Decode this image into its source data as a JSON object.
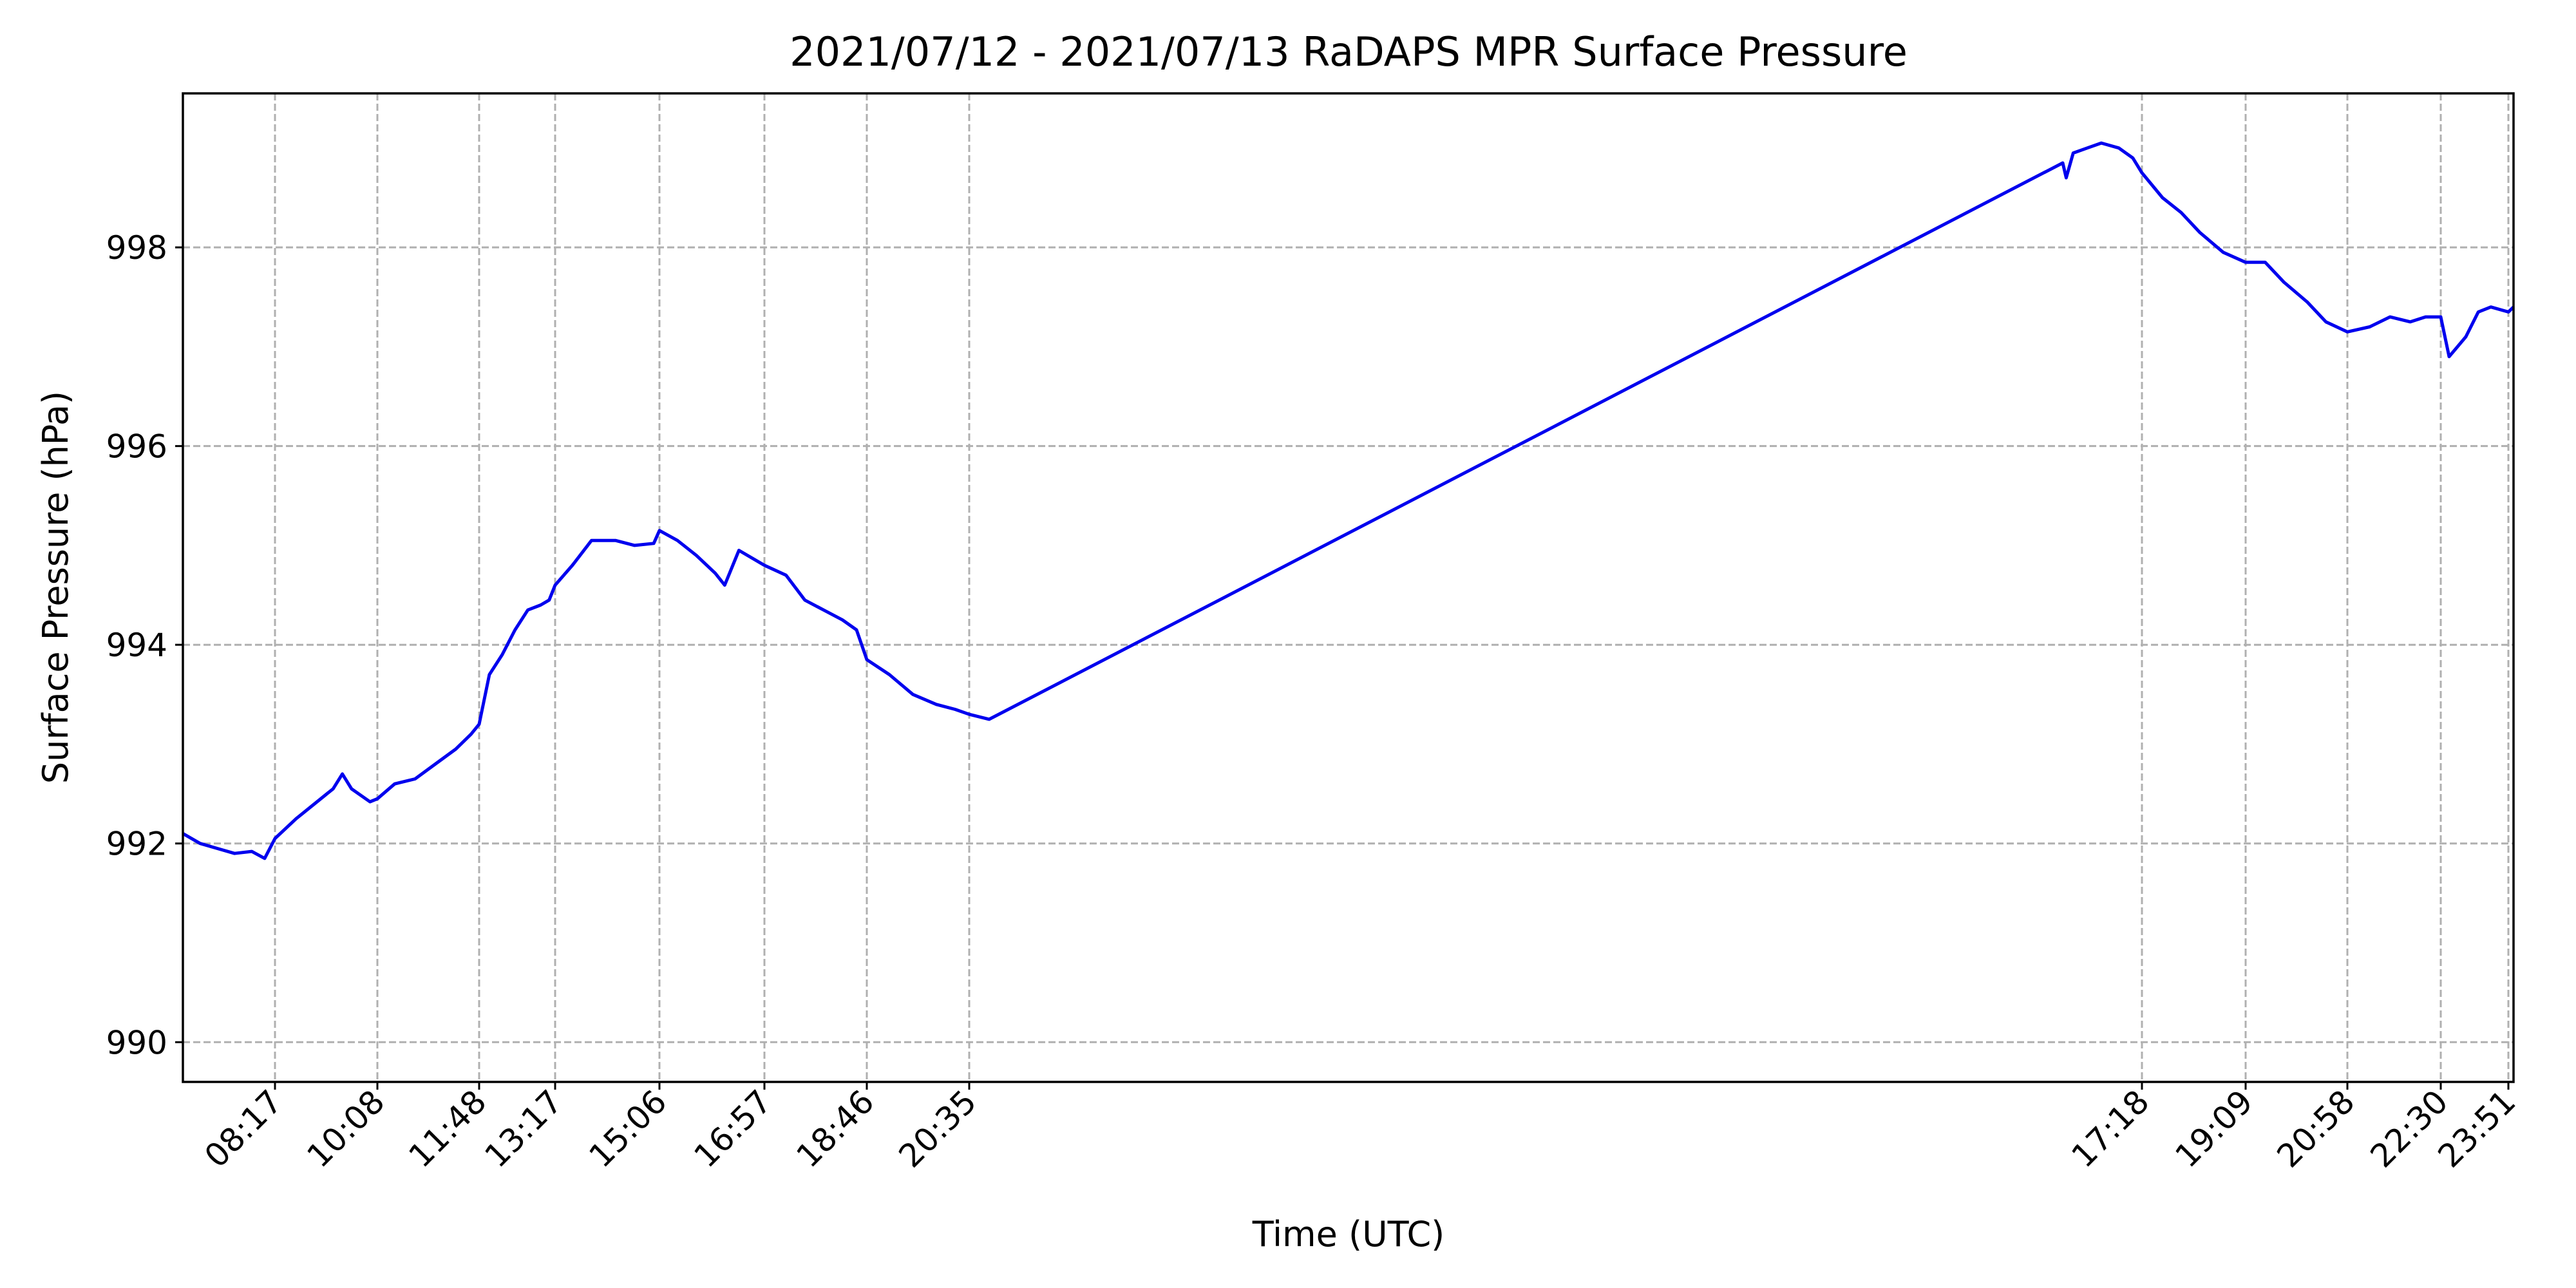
{
  "chart_data": {
    "type": "line",
    "title": "2021/07/12 - 2021/07/13 RaDAPS MPR Surface Pressure",
    "xlabel": "Time (UTC)",
    "ylabel": "Surface Pressure (hPa)",
    "ylim": [
      989.6,
      999.55
    ],
    "y_ticks": [
      990,
      992,
      994,
      996,
      998
    ],
    "grid": true,
    "x_axis_note": "x axis is a time axis spanning 2021/07/12 06:30 to 2021/07/13 23:58 UTC, drawn with a large overnight data gap; ticks are placed at the printed times",
    "x_ticks": [
      {
        "label": "08:17",
        "time": "2021-07-12T08:17"
      },
      {
        "label": "10:08",
        "time": "2021-07-12T10:08"
      },
      {
        "label": "11:48",
        "time": "2021-07-12T11:48"
      },
      {
        "label": "13:17",
        "time": "2021-07-12T13:17"
      },
      {
        "label": "15:06",
        "time": "2021-07-12T15:06"
      },
      {
        "label": "16:57",
        "time": "2021-07-12T16:57"
      },
      {
        "label": "18:46",
        "time": "2021-07-12T18:46"
      },
      {
        "label": "20:35",
        "time": "2021-07-12T20:35"
      },
      {
        "label": "17:18",
        "time": "2021-07-13T17:18"
      },
      {
        "label": "19:09",
        "time": "2021-07-13T19:09"
      },
      {
        "label": "20:58",
        "time": "2021-07-13T20:58"
      },
      {
        "label": "22:30",
        "time": "2021-07-13T22:30"
      },
      {
        "label": "23:51",
        "time": "2021-07-13T23:51"
      }
    ],
    "series": [
      {
        "color": "#0000ee",
        "points": [
          [
            "2021-07-12T06:30",
            992.1
          ],
          [
            "2021-07-12T06:50",
            992.0
          ],
          [
            "2021-07-12T07:10",
            991.95
          ],
          [
            "2021-07-12T07:30",
            991.9
          ],
          [
            "2021-07-12T07:50",
            991.92
          ],
          [
            "2021-07-12T08:05",
            991.85
          ],
          [
            "2021-07-12T08:17",
            992.05
          ],
          [
            "2021-07-12T08:40",
            992.25
          ],
          [
            "2021-07-12T09:00",
            992.4
          ],
          [
            "2021-07-12T09:20",
            992.55
          ],
          [
            "2021-07-12T09:30",
            992.7
          ],
          [
            "2021-07-12T09:40",
            992.55
          ],
          [
            "2021-07-12T10:00",
            992.42
          ],
          [
            "2021-07-12T10:08",
            992.45
          ],
          [
            "2021-07-12T10:25",
            992.6
          ],
          [
            "2021-07-12T10:45",
            992.65
          ],
          [
            "2021-07-12T11:05",
            992.8
          ],
          [
            "2021-07-12T11:25",
            992.95
          ],
          [
            "2021-07-12T11:40",
            993.1
          ],
          [
            "2021-07-12T11:48",
            993.2
          ],
          [
            "2021-07-12T12:00",
            993.7
          ],
          [
            "2021-07-12T12:15",
            993.9
          ],
          [
            "2021-07-12T12:30",
            994.15
          ],
          [
            "2021-07-12T12:45",
            994.35
          ],
          [
            "2021-07-12T13:00",
            994.4
          ],
          [
            "2021-07-12T13:10",
            994.45
          ],
          [
            "2021-07-12T13:17",
            994.6
          ],
          [
            "2021-07-12T13:35",
            994.8
          ],
          [
            "2021-07-12T13:55",
            995.05
          ],
          [
            "2021-07-12T14:20",
            995.05
          ],
          [
            "2021-07-12T14:40",
            995.0
          ],
          [
            "2021-07-12T15:00",
            995.02
          ],
          [
            "2021-07-12T15:06",
            995.15
          ],
          [
            "2021-07-12T15:25",
            995.05
          ],
          [
            "2021-07-12T15:45",
            994.9
          ],
          [
            "2021-07-12T16:05",
            994.72
          ],
          [
            "2021-07-12T16:15",
            994.6
          ],
          [
            "2021-07-12T16:30",
            994.95
          ],
          [
            "2021-07-12T16:57",
            994.8
          ],
          [
            "2021-07-12T17:20",
            994.7
          ],
          [
            "2021-07-12T17:40",
            994.45
          ],
          [
            "2021-07-12T18:00",
            994.35
          ],
          [
            "2021-07-12T18:20",
            994.25
          ],
          [
            "2021-07-12T18:35",
            994.15
          ],
          [
            "2021-07-12T18:46",
            993.85
          ],
          [
            "2021-07-12T19:10",
            993.7
          ],
          [
            "2021-07-12T19:35",
            993.5
          ],
          [
            "2021-07-12T20:00",
            993.4
          ],
          [
            "2021-07-12T20:20",
            993.35
          ],
          [
            "2021-07-12T20:35",
            993.3
          ],
          [
            "2021-07-12T20:55",
            993.25
          ],
          [
            "2021-07-13T15:25",
            998.85
          ],
          [
            "2021-07-13T15:30",
            998.7
          ],
          [
            "2021-07-13T15:40",
            998.95
          ],
          [
            "2021-07-13T16:00",
            999.0
          ],
          [
            "2021-07-13T16:20",
            999.05
          ],
          [
            "2021-07-13T16:45",
            999.0
          ],
          [
            "2021-07-13T17:05",
            998.9
          ],
          [
            "2021-07-13T17:18",
            998.75
          ],
          [
            "2021-07-13T17:40",
            998.5
          ],
          [
            "2021-07-13T18:00",
            998.35
          ],
          [
            "2021-07-13T18:20",
            998.15
          ],
          [
            "2021-07-13T18:45",
            997.95
          ],
          [
            "2021-07-13T19:09",
            997.85
          ],
          [
            "2021-07-13T19:30",
            997.85
          ],
          [
            "2021-07-13T19:50",
            997.65
          ],
          [
            "2021-07-13T20:15",
            997.45
          ],
          [
            "2021-07-13T20:35",
            997.25
          ],
          [
            "2021-07-13T20:58",
            997.15
          ],
          [
            "2021-07-13T21:20",
            997.2
          ],
          [
            "2021-07-13T21:40",
            997.3
          ],
          [
            "2021-07-13T22:00",
            997.25
          ],
          [
            "2021-07-13T22:15",
            997.3
          ],
          [
            "2021-07-13T22:30",
            997.3
          ],
          [
            "2021-07-13T22:40",
            996.9
          ],
          [
            "2021-07-13T23:00",
            997.1
          ],
          [
            "2021-07-13T23:15",
            997.35
          ],
          [
            "2021-07-13T23:30",
            997.4
          ],
          [
            "2021-07-13T23:51",
            997.35
          ],
          [
            "2021-07-13T23:58",
            997.4
          ]
        ]
      }
    ]
  }
}
